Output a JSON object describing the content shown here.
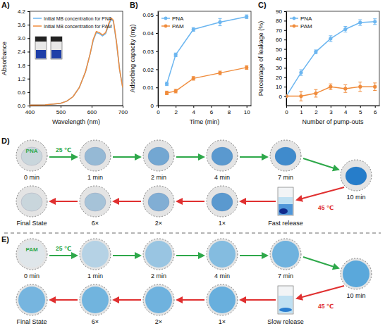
{
  "chart_data": [
    {
      "panel": "A)",
      "type": "line",
      "x_label": "Wavelength (nm)",
      "y_label": "Absorbance",
      "x": [
        400,
        450,
        500,
        520,
        540,
        560,
        580,
        595,
        605,
        615,
        625,
        635,
        645,
        655,
        663,
        670,
        680,
        690,
        700
      ],
      "series": [
        {
          "name": "Initial MB concentration for PNA",
          "color": "#6cb6f0",
          "values": [
            0.02,
            0.03,
            0.1,
            0.2,
            0.4,
            0.8,
            1.5,
            2.3,
            2.9,
            3.25,
            3.2,
            3.1,
            3.2,
            3.6,
            3.85,
            3.75,
            2.8,
            1.6,
            0.8
          ]
        },
        {
          "name": "Initial MB concentration for PAM",
          "color": "#f08c3c",
          "values": [
            0.02,
            0.03,
            0.1,
            0.2,
            0.4,
            0.8,
            1.5,
            2.3,
            2.95,
            3.3,
            3.25,
            3.15,
            3.25,
            3.65,
            3.9,
            3.8,
            2.85,
            1.6,
            0.8
          ]
        }
      ],
      "xlim": [
        400,
        700
      ],
      "xticks": [
        400,
        500,
        600,
        700
      ],
      "ylim": [
        0,
        4.2
      ],
      "yticks": [
        {
          "value": 0,
          "label": "0.0"
        },
        {
          "value": 0.6,
          "label": "0.6"
        },
        {
          "value": 1.2,
          "label": "1.2"
        },
        {
          "value": 1.8,
          "label": "1.8"
        },
        {
          "value": 2.4,
          "label": "2.4"
        },
        {
          "value": 3.0,
          "label": "3.0"
        },
        {
          "value": 3.6,
          "label": "3.6"
        },
        {
          "value": 4.2,
          "label": "4.2"
        }
      ],
      "legend": "upper left"
    },
    {
      "panel": "B)",
      "type": "line",
      "marker": "circle",
      "x_label": "Time (min)",
      "y_label": "Adsorbing capacity (mg)",
      "x": [
        1,
        2,
        4,
        7,
        10
      ],
      "series": [
        {
          "name": "PNA",
          "color": "#6cb6f0",
          "values": [
            0.012,
            0.028,
            0.042,
            0.046,
            0.049
          ],
          "errors": [
            0.001,
            0.001,
            0.001,
            0.002,
            0.001
          ]
        },
        {
          "name": "PAM",
          "color": "#f08c3c",
          "values": [
            0.007,
            0.008,
            0.015,
            0.018,
            0.021
          ],
          "errors": [
            0.001,
            0.001,
            0.001,
            0.001,
            0.001
          ]
        }
      ],
      "xlim": [
        0,
        10.5
      ],
      "xticks": [
        0,
        2,
        4,
        6,
        8,
        10
      ],
      "ylim": [
        0,
        0.052
      ],
      "yticks": [
        0,
        0.01,
        0.02,
        0.03,
        0.04,
        0.05
      ],
      "legend": "upper left"
    },
    {
      "panel": "C)",
      "type": "line",
      "marker": "circle",
      "x_label": "Number of pump-outs",
      "y_label": "Percentage of leakage (%)",
      "x": [
        0,
        1,
        2,
        3,
        4,
        5,
        6
      ],
      "series": [
        {
          "name": "PNA",
          "color": "#6cb6f0",
          "values": [
            0,
            25,
            47,
            61,
            71,
            78,
            79
          ],
          "errors": [
            0,
            3,
            2,
            3,
            3,
            3,
            3
          ]
        },
        {
          "name": "PAM",
          "color": "#f08c3c",
          "values": [
            0,
            0,
            3,
            10,
            8,
            10,
            10
          ],
          "errors": [
            0,
            5,
            4,
            3,
            4,
            5,
            4
          ]
        }
      ],
      "xlim": [
        0,
        6.3
      ],
      "xticks": [
        0,
        1,
        2,
        3,
        4,
        5,
        6
      ],
      "ylim": [
        -10,
        90
      ],
      "yticks": [
        0,
        10,
        20,
        30,
        40,
        50,
        60,
        70,
        80,
        90
      ],
      "legend": "upper left"
    }
  ],
  "photo_panels": [
    {
      "panel": "D)",
      "material": "PNA",
      "adsorption_temperature": "25 ℃",
      "adsorption_steps": [
        "0 min",
        "1 min",
        "2 min",
        "4 min",
        "7 min",
        "10 min"
      ],
      "release_temperature": "45 ℃",
      "release_steps": [
        "1×",
        "2×",
        "6×",
        "Final State"
      ],
      "release_label": "Fast release"
    },
    {
      "panel": "E)",
      "material": "PAM",
      "adsorption_temperature": "25 ℃",
      "adsorption_steps": [
        "0 min",
        "1 min",
        "2 min",
        "4 min",
        "7 min",
        "10 min"
      ],
      "release_temperature": "45 ℃",
      "release_steps": [
        "1×",
        "2×",
        "6×",
        "Final State"
      ],
      "release_label": "Slow release"
    }
  ]
}
